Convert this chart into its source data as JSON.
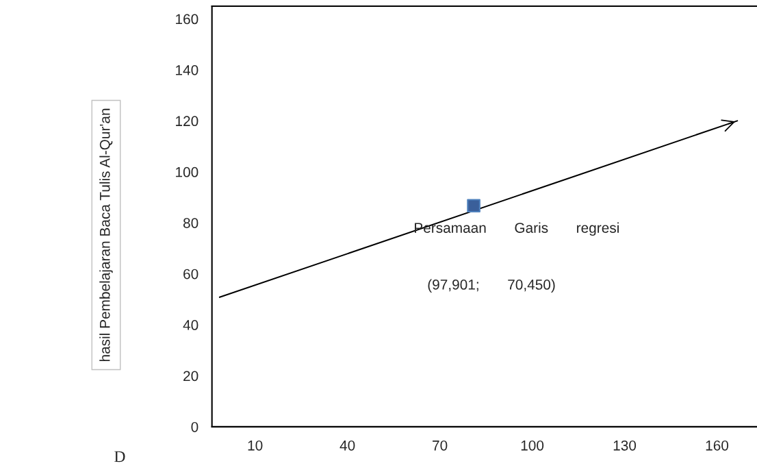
{
  "chart_data": {
    "type": "line",
    "xlim": [
      -4,
      173
    ],
    "ylim": [
      0,
      165
    ],
    "xticks": [
      10,
      40,
      70,
      100,
      130,
      160
    ],
    "yticks": [
      0,
      20,
      40,
      60,
      80,
      100,
      120,
      140,
      160
    ],
    "series": [
      {
        "color": "#000000",
        "x": [
          -1.5,
          166.6
        ],
        "values": [
          50.8,
          120
        ],
        "line_style": "solid",
        "marker": "none"
      },
      {
        "type": "scatter",
        "color": "#3a5f9a",
        "x": [
          81
        ],
        "values": [
          86.7
        ],
        "marker": "square"
      }
    ],
    "annotations": [
      "Persamaan       Garis       regresi",
      "(97,901;       70,450)",
      "hasil Pembelajaran Baca Tulis Al-Qur'an",
      "D"
    ],
    "grid": false,
    "legend": false
  }
}
